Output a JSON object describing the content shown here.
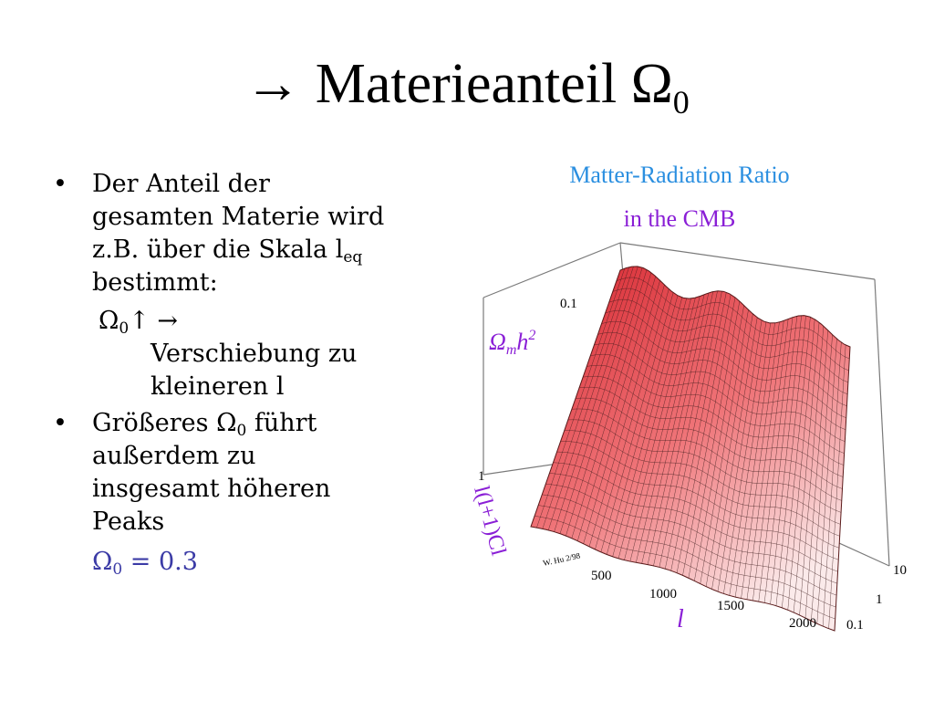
{
  "slide": {
    "title_arrow": "→",
    "title_text": "Materieanteil Ω",
    "title_sub": "0"
  },
  "bullets": {
    "b1_dot": "•",
    "b1_line1": "Der Anteil der",
    "b1_line2": "gesamten Materie wird",
    "b1_line3": "z.B. über die Skala l",
    "b1_sub": "eq",
    "b1_line4": "bestimmt:",
    "s1_omega": "Ω",
    "s1_sub": "0",
    "s1_arrows": "↑ →",
    "s1_line2": "Verschiebung zu",
    "s1_line3": "kleineren l",
    "b2_dot": "•",
    "b2_pre": "Größeres Ω",
    "b2_sub": "0",
    "b2_post": " führt",
    "b2_line2": "außerdem zu",
    "b2_line3": "insgesamt höheren",
    "b2_line4": "Peaks",
    "eq_omega": "Ω",
    "eq_sub": "0",
    "eq_rest": " = 0.3"
  },
  "figure": {
    "title_line1": "Matter-Radiation Ratio",
    "title_line2": "in the CMB",
    "title_line1_color": "#2b8fe0",
    "title_line2_color": "#8a1fd6",
    "zaxis_label": "l(l+1)Cl",
    "z_tick_top": "0.1",
    "z_tick_bottom": "1",
    "param_label_omega": "Ω",
    "param_label_m": "m",
    "param_label_h": "h",
    "param_label_exp": "2",
    "xaxis_label": "l",
    "x_ticks": [
      "500",
      "1000",
      "1500",
      "2000"
    ],
    "y_ticks": [
      "0.1",
      "1",
      "10"
    ],
    "credit": "W. Hu 2/98",
    "surface_color": "#e8464c",
    "label_color": "#8a1fd6"
  }
}
